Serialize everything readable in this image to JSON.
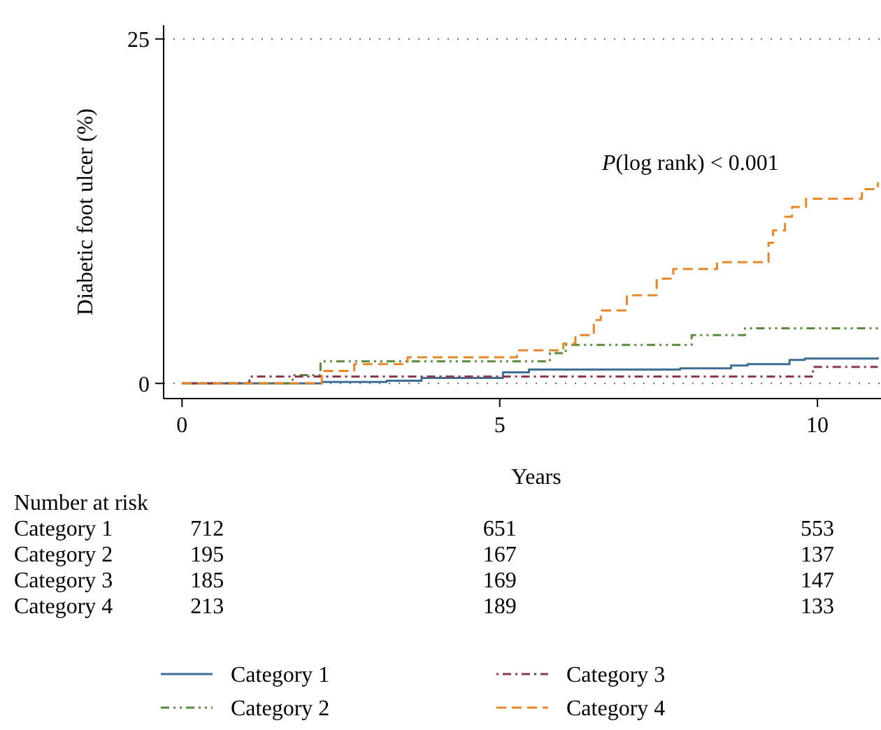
{
  "chart_data": {
    "type": "step",
    "xlabel": "Years",
    "ylabel": "Diabetic foot ulcer (%)",
    "xlim": [
      -0.29,
      11
    ],
    "ylim": [
      -1.1,
      26
    ],
    "xticks": [
      0,
      5,
      10
    ],
    "yticks": [
      0,
      25
    ],
    "grid": "y",
    "legend": "bottom",
    "annotations": [
      "P(log rank) < 0.001",
      "Number at risk",
      "712",
      "651",
      "553",
      "195",
      "167",
      "137",
      "185",
      "169",
      "147",
      "213",
      "189",
      "133"
    ],
    "series": [
      {
        "name": "Category 1",
        "color": "#3e6e96",
        "line_style": "solid",
        "x": [
          0,
          2.2,
          3.22,
          3.77,
          5.05,
          5.46,
          7.84,
          8.64,
          8.9,
          9.56,
          9.8,
          10.95
        ],
        "values": [
          0,
          0.1,
          0.2,
          0.4,
          0.8,
          1,
          1.1,
          1.3,
          1.4,
          1.7,
          1.8,
          1.9
        ]
      },
      {
        "name": "Category 2",
        "color": "#5a8a3c",
        "line_style": "dashdot",
        "x": [
          0,
          1.74,
          2.18,
          5.79,
          6.04,
          8.02,
          8.86,
          10.95
        ],
        "values": [
          0,
          0.6,
          1.6,
          2.2,
          2.8,
          3.5,
          4,
          4
        ]
      },
      {
        "name": "Category 3",
        "color": "#8b3a4a",
        "line_style": "dotdash",
        "x": [
          0,
          1.06,
          9.93,
          10.95
        ],
        "values": [
          0,
          0.5,
          1.2,
          1.2
        ]
      },
      {
        "name": "Category 4",
        "color": "#e8862a",
        "line_style": "dashed",
        "x": [
          0,
          2.2,
          2.71,
          3.55,
          5.27,
          6.0,
          6.19,
          6.48,
          6.59,
          7.0,
          7.47,
          7.73,
          8.42,
          9.23,
          9.3,
          9.49,
          9.6,
          9.82,
          10.7,
          10.95
        ],
        "values": [
          0,
          0.9,
          1.4,
          1.9,
          2.4,
          2.9,
          3.5,
          4.6,
          5.3,
          6.4,
          7.6,
          8.3,
          8.8,
          10.2,
          11.1,
          12.1,
          12.8,
          13.4,
          14.1,
          14.6
        ]
      }
    ]
  }
}
